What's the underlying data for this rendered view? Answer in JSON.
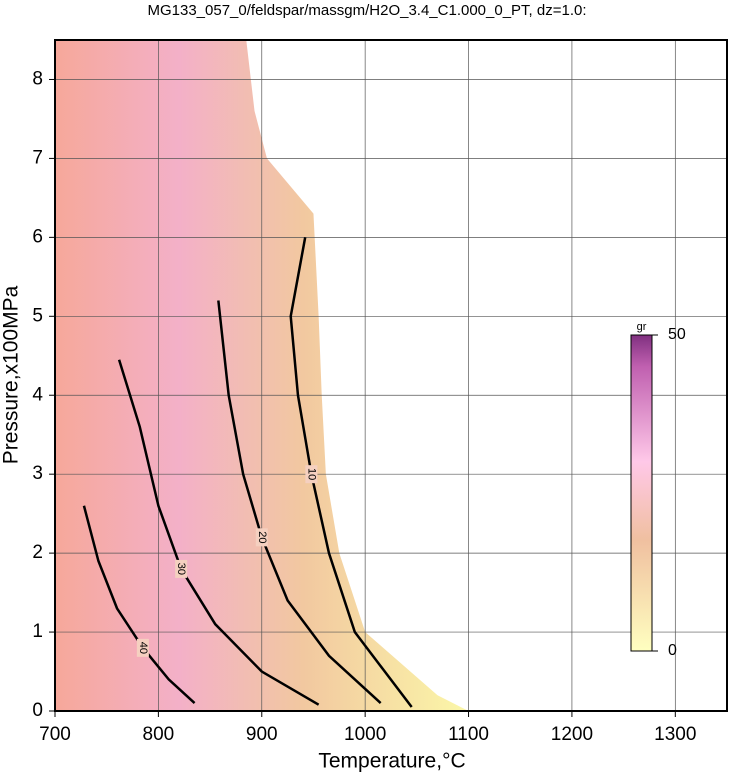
{
  "chart_data": {
    "type": "contour",
    "title": "MG133_057_0/feldspar/massgm/H2O_3.4_C1.000_0_PT, dz=1.0:",
    "x_label": "Temperature,°C",
    "y_label": "Pressure,x100MPa",
    "xlim": [
      700,
      1350
    ],
    "ylim": [
      0,
      8.5
    ],
    "xticks": [
      700,
      800,
      900,
      1000,
      1100,
      1200,
      1300
    ],
    "yticks": [
      0,
      1,
      2,
      3,
      4,
      5,
      6,
      7,
      8
    ],
    "grid": true,
    "extent": {
      "x": [
        700,
        885,
        893,
        905,
        950,
        955,
        958,
        962,
        975,
        1000,
        1070,
        1100,
        700
      ],
      "y": [
        8.5,
        8.5,
        7.6,
        7.0,
        6.3,
        5.0,
        4.0,
        3.0,
        2.0,
        1.0,
        0.2,
        0,
        0
      ]
    },
    "contours": [
      {
        "level": 10,
        "x": [
          942,
          928,
          935,
          948,
          965,
          990,
          1045
        ],
        "y": [
          6.0,
          5.0,
          4.0,
          3.0,
          2.0,
          1.0,
          0.05
        ]
      },
      {
        "level": 20,
        "x": [
          858,
          868,
          882,
          900,
          925,
          965,
          1015
        ],
        "y": [
          5.2,
          4.0,
          3.0,
          2.2,
          1.4,
          0.7,
          0.1
        ]
      },
      {
        "level": 30,
        "x": [
          762,
          782,
          800,
          822,
          855,
          900,
          955
        ],
        "y": [
          4.45,
          3.6,
          2.6,
          1.8,
          1.1,
          0.5,
          0.08
        ]
      },
      {
        "level": 40,
        "x": [
          728,
          742,
          760,
          785,
          810,
          835
        ],
        "y": [
          2.6,
          1.9,
          1.3,
          0.8,
          0.4,
          0.1
        ]
      }
    ],
    "colorbar": {
      "label": "gr",
      "lim": [
        0,
        50
      ],
      "ticks": [
        0,
        50
      ]
    }
  }
}
